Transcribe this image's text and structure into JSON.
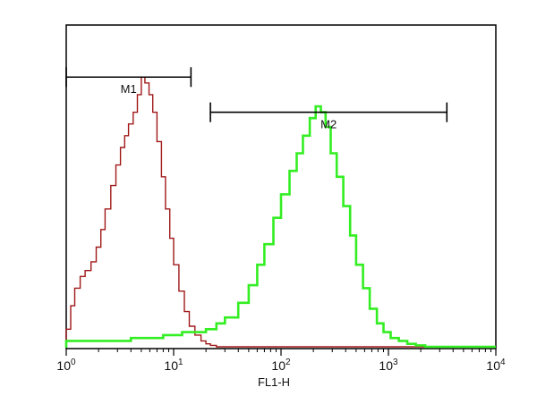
{
  "chart_data": {
    "type": "line",
    "xscale": "log",
    "xlim": [
      1,
      10000
    ],
    "xlabel": "FL1-H",
    "ylabel": "",
    "x_ticks": [
      {
        "base": "10",
        "exp": "0",
        "value": 1
      },
      {
        "base": "10",
        "exp": "1",
        "value": 10
      },
      {
        "base": "10",
        "exp": "2",
        "value": 100
      },
      {
        "base": "10",
        "exp": "3",
        "value": 1000
      },
      {
        "base": "10",
        "exp": "4",
        "value": 10000
      }
    ],
    "markers": [
      {
        "label": "M1",
        "x_start": 1.0,
        "x_end": 14.5,
        "level": 0.92
      },
      {
        "label": "M2",
        "x_start": 22,
        "x_end": 3500,
        "level": 0.8
      }
    ],
    "series": [
      {
        "color": "#a01818",
        "x": [
          1.0,
          1.1,
          1.2,
          1.35,
          1.5,
          1.7,
          1.9,
          2.1,
          2.3,
          2.6,
          2.9,
          3.2,
          3.5,
          3.8,
          4.2,
          4.6,
          5.0,
          5.4,
          5.9,
          6.4,
          7.0,
          7.7,
          8.4,
          9.2,
          10.0,
          11.2,
          12.6,
          14.0,
          15.8,
          18.0,
          20.0,
          22.0,
          25.0,
          40.0,
          10000
        ],
        "y": [
          0.06,
          0.14,
          0.2,
          0.24,
          0.26,
          0.29,
          0.34,
          0.4,
          0.47,
          0.55,
          0.62,
          0.68,
          0.72,
          0.76,
          0.8,
          0.86,
          0.92,
          0.9,
          0.86,
          0.8,
          0.7,
          0.58,
          0.47,
          0.37,
          0.28,
          0.19,
          0.12,
          0.07,
          0.04,
          0.02,
          0.01,
          0.005,
          0.0,
          0.0,
          0.0
        ]
      },
      {
        "color": "#33ee22",
        "x": [
          1.0,
          2.0,
          4.0,
          8.0,
          12.0,
          16.0,
          20.0,
          25.0,
          30.0,
          40.0,
          50.0,
          60.0,
          70.0,
          85.0,
          100,
          120,
          140,
          160,
          185,
          210,
          235,
          260,
          290,
          330,
          380,
          440,
          500,
          580,
          670,
          780,
          900,
          1050,
          1250,
          1500,
          1800,
          2200,
          10000
        ],
        "y": [
          0.02,
          0.02,
          0.03,
          0.04,
          0.05,
          0.05,
          0.06,
          0.08,
          0.1,
          0.15,
          0.21,
          0.28,
          0.35,
          0.44,
          0.52,
          0.6,
          0.66,
          0.72,
          0.78,
          0.82,
          0.8,
          0.75,
          0.66,
          0.58,
          0.48,
          0.38,
          0.28,
          0.2,
          0.13,
          0.08,
          0.05,
          0.03,
          0.02,
          0.01,
          0.005,
          0.0,
          0.0
        ]
      }
    ]
  }
}
